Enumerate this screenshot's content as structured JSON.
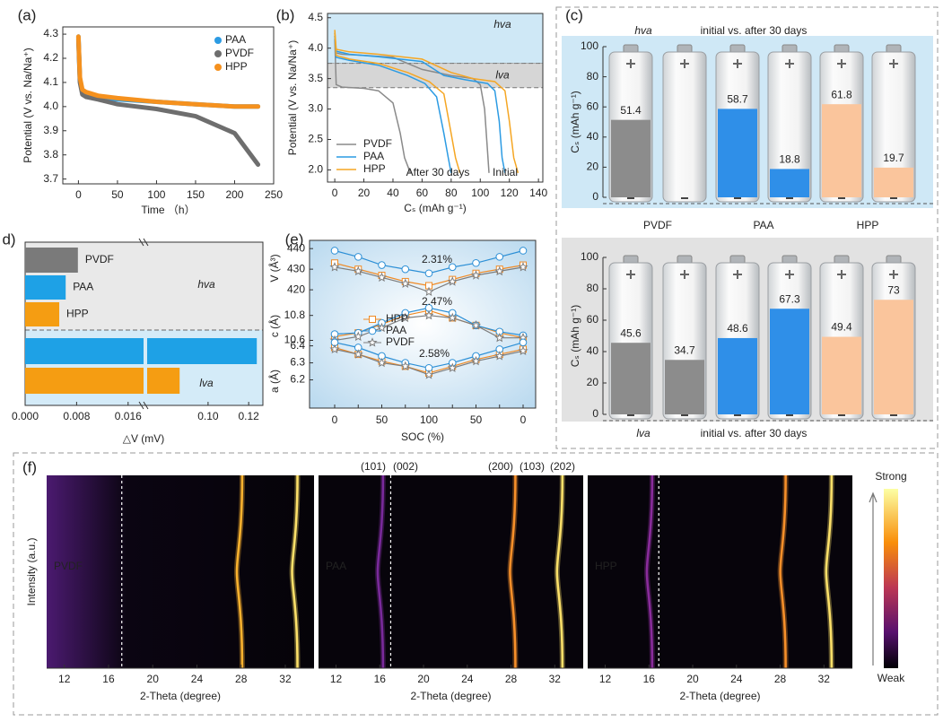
{
  "chart_data": [
    {
      "type": "line",
      "panel": "(a)",
      "xlabel": "Time （h）",
      "ylabel": "Potential (V vs. Na/Na⁺)",
      "xlim": [
        -20,
        250
      ],
      "xticks": [
        0,
        50,
        100,
        150,
        200,
        250
      ],
      "ylim": [
        3.68,
        4.33
      ],
      "yticks": [
        3.7,
        3.8,
        3.9,
        {
          "value": 4,
          "label": "4.0"
        },
        4.1,
        4.2,
        4.3
      ],
      "x": [
        0,
        2,
        5,
        10,
        25,
        50,
        100,
        150,
        200,
        230
      ],
      "series": [
        {
          "name": "PAA",
          "color": "#2c9be3",
          "values": [
            4.29,
            4.11,
            4.065,
            4.055,
            4.04,
            4.03,
            4.02,
            4.01,
            4.0,
            4.0
          ]
        },
        {
          "name": "PVDF",
          "color": "#6e6e6e",
          "values": [
            4.28,
            4.1,
            4.05,
            4.04,
            4.03,
            4.01,
            3.99,
            3.96,
            3.89,
            3.76
          ]
        },
        {
          "name": "HPP",
          "color": "#f5911e",
          "values": [
            4.29,
            4.12,
            4.07,
            4.06,
            4.045,
            4.035,
            4.02,
            4.01,
            4.0,
            4.0
          ]
        }
      ]
    },
    {
      "type": "line",
      "panel": "(b)",
      "xlabel": "Cₛ (mAh g⁻¹)",
      "ylabel": "Potential (V vs. Na/Na⁺)",
      "xlim": [
        -5,
        143
      ],
      "xticks": [
        0,
        20,
        40,
        60,
        80,
        100,
        120,
        140
      ],
      "ylim": [
        1.8,
        4.57
      ],
      "yticks": [
        {
          "value": 2,
          "label": "2.0"
        },
        2.5,
        {
          "value": 3,
          "label": "3.0"
        },
        3.5,
        {
          "value": 4,
          "label": "4.0"
        },
        4.5
      ],
      "regions": [
        {
          "label": "hva",
          "from": 3.75,
          "to": 4.57,
          "color": "#cfe8f6"
        },
        {
          "label": "lva",
          "from": 3.35,
          "to": 3.75,
          "color": "#d6d6d6"
        }
      ],
      "annotations": [
        "After 30 days",
        "Initial"
      ],
      "series": [
        {
          "name": "PVDF",
          "color": "#8a8a8a",
          "curves": [
            {
              "x": [
                0,
                1,
                5,
                20,
                40,
                60,
                80,
                95,
                100,
                103,
                105,
                106
              ],
              "values": [
                4.2,
                3.92,
                3.9,
                3.88,
                3.85,
                3.65,
                3.55,
                3.5,
                3.4,
                3.0,
                2.3,
                1.95
              ]
            },
            {
              "x": [
                0,
                1,
                5,
                20,
                30,
                40,
                45,
                48,
                52
              ],
              "values": [
                4.15,
                3.4,
                3.36,
                3.34,
                3.3,
                3.1,
                2.6,
                2.2,
                1.95
              ]
            }
          ]
        },
        {
          "name": "PAA",
          "color": "#2c9be3",
          "curves": [
            {
              "x": [
                0,
                1,
                10,
                30,
                60,
                75,
                90,
                105,
                110,
                113,
                115,
                117
              ],
              "values": [
                4.25,
                3.95,
                3.9,
                3.86,
                3.78,
                3.55,
                3.48,
                3.42,
                3.3,
                2.8,
                2.2,
                1.95
              ]
            },
            {
              "x": [
                0,
                1,
                10,
                30,
                50,
                62,
                70,
                75,
                78,
                80
              ],
              "values": [
                4.2,
                3.85,
                3.8,
                3.72,
                3.55,
                3.42,
                3.2,
                2.6,
                2.2,
                1.95
              ]
            }
          ]
        },
        {
          "name": "HPP",
          "color": "#f5a623",
          "curves": [
            {
              "x": [
                0,
                1,
                10,
                30,
                60,
                80,
                95,
                110,
                117,
                120,
                123,
                126
              ],
              "values": [
                4.3,
                3.98,
                3.94,
                3.9,
                3.82,
                3.6,
                3.5,
                3.45,
                3.3,
                2.8,
                2.2,
                1.95
              ]
            },
            {
              "x": [
                0,
                1,
                10,
                30,
                50,
                65,
                75,
                80,
                83,
                86
              ],
              "values": [
                4.25,
                3.88,
                3.82,
                3.75,
                3.6,
                3.45,
                3.25,
                2.6,
                2.2,
                1.95
              ]
            }
          ]
        }
      ]
    },
    {
      "type": "battery-bar",
      "panel": "(c)",
      "ylabel": "Cₛ (mAh g⁻¹)",
      "ylim": [
        0,
        100
      ],
      "yticks": [
        0,
        20,
        40,
        60,
        80,
        100
      ],
      "title": "initial vs. after 30 days",
      "groups": [
        "PVDF",
        "PAA",
        "HPP"
      ],
      "group_colors": [
        "#808080",
        "#1e9be0",
        "#f0a030"
      ],
      "colors": [
        "#8c8c8c",
        "#8c8c8c",
        "#2f8fe8",
        "#2f8fe8",
        "#fac59c",
        "#fac59c"
      ],
      "subplots": [
        {
          "label": "hva",
          "values": [
            51.4,
            null,
            58.7,
            18.8,
            61.8,
            19.7
          ]
        },
        {
          "label": "lva",
          "values": [
            45.6,
            34.7,
            48.6,
            67.3,
            49.4,
            73
          ]
        }
      ]
    },
    {
      "type": "broken-barh",
      "panel": "d)",
      "xlabel": "△V (mV)",
      "segments": [
        [
          0,
          0.0184
        ],
        [
          0.07,
          0.127
        ]
      ],
      "xticks": [
        {
          "value": 0,
          "label": "0.000"
        },
        0.008,
        0.016,
        {
          "value": 0.1,
          "label": "0.10"
        },
        0.12
      ],
      "groups": [
        {
          "label": "hva",
          "categories": [
            "PVDF",
            "PAA",
            "HPP"
          ],
          "values": [
            0.0082,
            0.0063,
            0.0053
          ],
          "colors": [
            "#7a7a7a",
            "#1ea1e6",
            "#f59d12"
          ]
        },
        {
          "label": "lva",
          "values": [
            0.124,
            0.086
          ],
          "colors": [
            "#1ea1e6",
            "#f59d12"
          ]
        }
      ]
    },
    {
      "type": "line-multi",
      "panel": "(e)",
      "xlabel": "SOC (%)",
      "categories": [
        "0",
        null,
        "50",
        null,
        "100",
        null,
        "50",
        null,
        "0"
      ],
      "series": [
        {
          "name": "HPP",
          "color": "#f08a24",
          "marker": "square"
        },
        {
          "name": "PAA",
          "color": "#2c8fd6",
          "marker": "circle"
        },
        {
          "name": "PVDF",
          "color": "#7d7d7d",
          "marker": "star"
        }
      ],
      "annotations": [
        {
          "text": "2.31%",
          "color": "#f08a24"
        },
        {
          "text": "2.47%",
          "color": "#2c8fd6"
        },
        {
          "text": "2.58%",
          "color": "#8a8a8a"
        }
      ],
      "subplots": [
        {
          "ylabel": "V (Å³)",
          "ylim": [
            417,
            444
          ],
          "yticks": [
            420,
            430,
            440
          ],
          "values": [
            [
              433,
              430,
              427,
              424,
              422,
              425,
              428,
              430,
              432
            ],
            [
              439,
              436,
              432,
              430,
              428,
              431,
              433,
              436,
              439
            ],
            [
              431,
              429,
              426,
              423,
              419,
              424,
              427,
              429,
              431
            ]
          ]
        },
        {
          "ylabel": "c (Å)",
          "ylim": [
            10.51,
            10.92
          ],
          "yticks": [
            10.6,
            10.8
          ],
          "values": [
            [
              10.63,
              10.66,
              10.73,
              10.8,
              10.84,
              10.78,
              10.72,
              10.66,
              10.62
            ],
            [
              10.65,
              10.66,
              10.74,
              10.82,
              10.86,
              10.82,
              10.72,
              10.67,
              10.64
            ],
            [
              10.6,
              10.63,
              10.7,
              10.78,
              10.8,
              10.78,
              10.72,
              10.62,
              10.62
            ]
          ]
        },
        {
          "ylabel": "a (Å)",
          "ylim": [
            6.05,
            6.44
          ],
          "yticks": [
            6.2,
            6.3,
            6.4
          ],
          "values": [
            [
              6.39,
              6.35,
              6.31,
              6.28,
              6.24,
              6.28,
              6.32,
              6.35,
              6.38
            ],
            [
              6.42,
              6.39,
              6.34,
              6.3,
              6.27,
              6.3,
              6.34,
              6.38,
              6.42
            ],
            [
              6.38,
              6.35,
              6.3,
              6.28,
              6.23,
              6.27,
              6.31,
              6.34,
              6.37
            ]
          ]
        }
      ]
    },
    {
      "type": "heatmap",
      "panel": "(f)",
      "ylabel": "Intensity (a.u.)",
      "xlabel": "2-Theta (degree)",
      "xlim": [
        10.4,
        34.6
      ],
      "xticks": [
        12,
        16,
        20,
        24,
        28,
        32
      ],
      "panels": [
        {
          "label": "PVDF",
          "peaks": [
            28.1,
            33.1
          ],
          "peak_colors": [
            "#fbb32f",
            "#fde16a"
          ],
          "reference": 17.2
        },
        {
          "label": "PAA",
          "peaks": [
            16.3,
            28.4,
            32.7
          ],
          "peak_colors": [
            "#7a2a9c",
            "#f7902a",
            "#fde16a"
          ],
          "reference": 17.0
        },
        {
          "label": "HPP",
          "peaks": [
            16.3,
            28.5,
            32.7
          ],
          "peak_colors": [
            "#8a2c9c",
            "#f7902a",
            "#fde16a"
          ],
          "reference": 16.9
        }
      ],
      "peak_labels": [
        "(101)",
        "(002)",
        "(200)",
        "(103)",
        "(202)"
      ],
      "colorbar": {
        "high": "Strong",
        "low": "Weak"
      }
    }
  ]
}
